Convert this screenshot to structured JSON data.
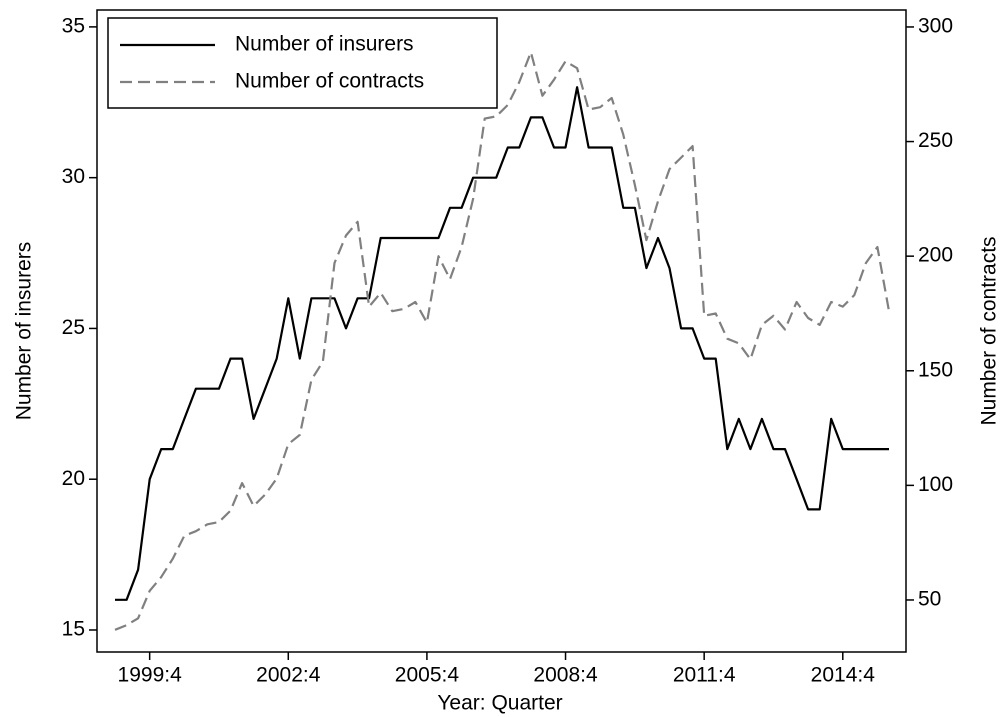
{
  "chart_data": {
    "type": "line",
    "xlabel": "Year: Quarter",
    "ylabel": "Number of insurers",
    "y2label": "Number of contracts",
    "categories": [
      null,
      null,
      null,
      "1999:4",
      null,
      null,
      null,
      null,
      null,
      null,
      null,
      null,
      null,
      null,
      null,
      "2002:4",
      null,
      null,
      null,
      null,
      null,
      null,
      null,
      null,
      null,
      null,
      null,
      "2005:4",
      null,
      null,
      null,
      null,
      null,
      null,
      null,
      null,
      null,
      null,
      null,
      "2008:4",
      null,
      null,
      null,
      null,
      null,
      null,
      null,
      null,
      null,
      null,
      null,
      "2011:4",
      null,
      null,
      null,
      null,
      null,
      null,
      null,
      null,
      null,
      null,
      null,
      "2014:4",
      null,
      null,
      null,
      null
    ],
    "series": [
      {
        "name": "Number of insurers",
        "color": "#000000",
        "dash": false,
        "values": [
          16,
          16,
          17,
          20,
          21,
          21,
          22,
          23,
          23,
          23,
          24,
          24,
          22,
          23,
          24,
          26,
          24,
          26,
          26,
          26,
          25,
          26,
          26,
          28,
          28,
          28,
          28,
          28,
          28,
          29,
          29,
          30,
          30,
          30,
          31,
          31,
          32,
          32,
          31,
          31,
          33,
          31,
          31,
          31,
          29,
          29,
          27,
          28,
          27,
          25,
          25,
          24,
          24,
          21,
          22,
          21,
          22,
          21,
          21,
          20,
          19,
          19,
          22,
          21,
          21,
          21,
          21,
          21
        ]
      },
      {
        "name": "Number of contracts",
        "color": "#808080",
        "dash": true,
        "axis": "y2",
        "values": [
          37,
          39,
          42,
          54,
          60,
          68,
          78,
          80,
          83,
          84,
          89,
          101,
          91,
          96,
          103,
          118,
          122,
          146,
          154,
          197,
          209,
          215,
          178,
          184,
          176,
          177,
          180,
          171,
          200,
          190,
          204,
          225,
          260,
          261,
          266,
          276,
          289,
          270,
          277,
          285,
          282,
          264,
          265,
          269,
          253,
          231,
          207,
          224,
          238,
          243,
          248,
          174,
          175,
          164,
          162,
          155,
          170,
          174,
          168,
          180,
          173,
          170,
          180,
          178,
          183,
          197,
          204,
          176
        ]
      }
    ],
    "ylim": [
      14.27,
      35.56
    ],
    "yticks": [
      15,
      20,
      25,
      30,
      35
    ],
    "y2lim": [
      27.3,
      307.4
    ],
    "y2ticks": [
      50,
      100,
      150,
      200,
      250,
      300
    ],
    "legend": "top-left"
  }
}
